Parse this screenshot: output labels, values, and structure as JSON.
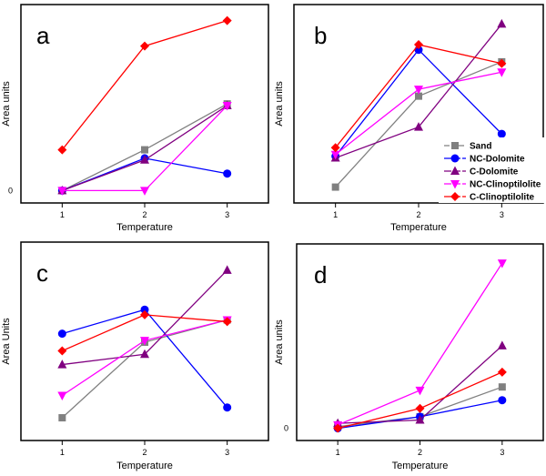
{
  "chart_data": [
    {
      "type": "line",
      "panel": "a",
      "xlabel": "Temperature",
      "ylabel": "Area units",
      "x": [
        1,
        2,
        3
      ],
      "xticks": [
        "1",
        "2",
        "3"
      ],
      "yticks": [
        "0"
      ],
      "ylim": [
        -0.3,
        10.3
      ],
      "series": [
        {
          "name": "Sand",
          "values": [
            0,
            2.4,
            5.1
          ]
        },
        {
          "name": "NC-Dolomite",
          "values": [
            0,
            1.9,
            1.0
          ]
        },
        {
          "name": "C-Dolomite",
          "values": [
            0,
            1.8,
            5.0
          ]
        },
        {
          "name": "NC-Clinoptilolite",
          "values": [
            0,
            0,
            5.0
          ]
        },
        {
          "name": "C-Clinoptilolite",
          "values": [
            2.4,
            8.5,
            10.0
          ]
        }
      ]
    },
    {
      "type": "line",
      "panel": "b",
      "xlabel": "Temperature",
      "ylabel": "Area units",
      "x": [
        1,
        2,
        3
      ],
      "xticks": [
        "1",
        "2",
        "3"
      ],
      "yticks": [],
      "ylim": [
        0,
        10.5
      ],
      "series": [
        {
          "name": "Sand",
          "values": [
            0.5,
            5.8,
            7.8
          ]
        },
        {
          "name": "NC-Dolomite",
          "values": [
            2.3,
            8.5,
            3.6
          ]
        },
        {
          "name": "C-Dolomite",
          "values": [
            2.2,
            4.0,
            10.0
          ]
        },
        {
          "name": "NC-Clinoptilolite",
          "values": [
            2.4,
            6.2,
            7.2
          ]
        },
        {
          "name": "C-Clinoptilolite",
          "values": [
            2.8,
            8.8,
            7.7
          ]
        }
      ],
      "legend": {
        "placement": "bottom-right",
        "entries": [
          "Sand",
          "NC-Dolomite",
          "C-Dolomite",
          "NC-Clinoptilolite",
          "C-Clinoptilolite"
        ]
      }
    },
    {
      "type": "line",
      "panel": "c",
      "xlabel": "Temperature",
      "ylabel": "Area Units",
      "x": [
        1,
        2,
        3
      ],
      "xticks": [
        "1",
        "2",
        "3"
      ],
      "yticks": [],
      "ylim": [
        0,
        10.5
      ],
      "series": [
        {
          "name": "Sand",
          "values": [
            0.9,
            5.3,
            6.6
          ]
        },
        {
          "name": "NC-Dolomite",
          "values": [
            5.8,
            7.2,
            1.5
          ]
        },
        {
          "name": "C-Dolomite",
          "values": [
            4.0,
            4.6,
            9.5
          ]
        },
        {
          "name": "NC-Clinoptilolite",
          "values": [
            2.2,
            5.4,
            6.6
          ]
        },
        {
          "name": "C-Clinoptilolite",
          "values": [
            4.8,
            6.9,
            6.5
          ]
        }
      ]
    },
    {
      "type": "line",
      "panel": "d",
      "xlabel": "Temperature",
      "ylabel": "Area units",
      "x": [
        1,
        2,
        3
      ],
      "xticks": [
        "1",
        "2",
        "3"
      ],
      "yticks": [
        "0"
      ],
      "ylim": [
        -0.3,
        10.5
      ],
      "series": [
        {
          "name": "Sand",
          "values": [
            0.1,
            0.7,
            2.5
          ]
        },
        {
          "name": "NC-Dolomite",
          "values": [
            0,
            0.7,
            1.7
          ]
        },
        {
          "name": "C-Dolomite",
          "values": [
            0.3,
            0.5,
            5.0
          ]
        },
        {
          "name": "NC-Clinoptilolite",
          "values": [
            0.2,
            2.3,
            10.0
          ]
        },
        {
          "name": "C-Clinoptilolite",
          "values": [
            0,
            1.2,
            3.4
          ]
        }
      ]
    }
  ],
  "series_styles": {
    "Sand": {
      "color": "#808080",
      "marker": "square"
    },
    "NC-Dolomite": {
      "color": "#0000ff",
      "marker": "circle"
    },
    "C-Dolomite": {
      "color": "#800080",
      "marker": "triangle-up"
    },
    "NC-Clinoptilolite": {
      "color": "#ff00ff",
      "marker": "triangle-down"
    },
    "C-Clinoptilolite": {
      "color": "#ff0000",
      "marker": "diamond"
    }
  }
}
